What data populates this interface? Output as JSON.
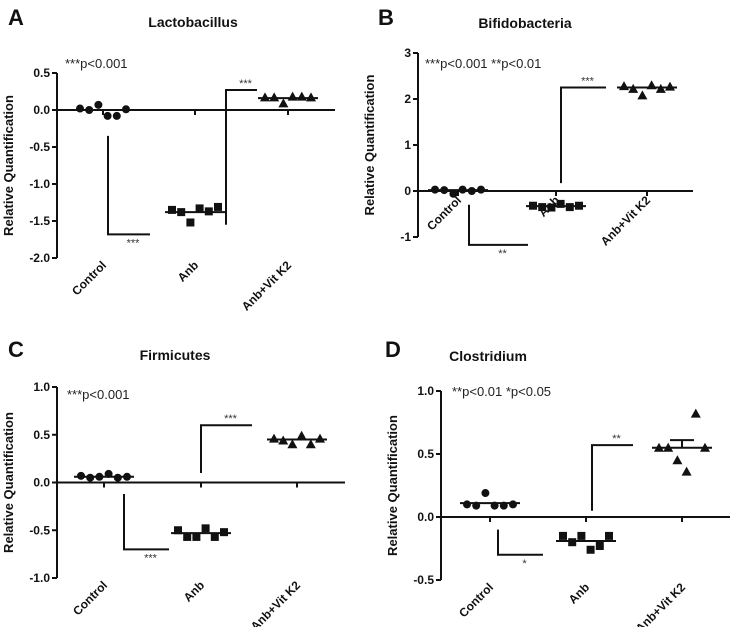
{
  "chart_data": [
    {
      "type": "scatter",
      "panel_label": "A",
      "title": "Lactobacillus",
      "ylabel": "Relative Quantification",
      "ylim": [
        -2.0,
        0.5
      ],
      "yticks": [
        "0.5",
        "0.0",
        "-0.5",
        "-1.0",
        "-1.5",
        "-2.0"
      ],
      "ytick_values": [
        0.5,
        0.0,
        -0.5,
        -1.0,
        -1.5,
        -2.0
      ],
      "categories": [
        "Control",
        "Anb",
        "Anb+Vit K2"
      ],
      "markers": [
        "circle",
        "square",
        "triangle"
      ],
      "series": [
        {
          "values": [
            0.02,
            0.0,
            0.07,
            -0.08,
            -0.08,
            0.01
          ],
          "mean": 0.0
        },
        {
          "values": [
            -1.35,
            -1.38,
            -1.52,
            -1.33,
            -1.37,
            -1.31
          ],
          "mean": -1.38
        },
        {
          "values": [
            0.17,
            0.17,
            0.09,
            0.18,
            0.18,
            0.17
          ],
          "mean": 0.16
        }
      ],
      "p_note": "***p<0.001",
      "brackets": [
        {
          "y_start": -0.35,
          "y_end": -1.68,
          "label": "***"
        },
        {
          "y_start": -1.55,
          "y_end": 0.27,
          "label": "***"
        }
      ]
    },
    {
      "type": "scatter",
      "panel_label": "B",
      "title": "Bifidobacteria",
      "ylabel": "Relative Quantification",
      "ylim": [
        -1,
        3
      ],
      "yticks": [
        "3",
        "2",
        "1",
        "0",
        "-1"
      ],
      "ytick_values": [
        3,
        2,
        1,
        0,
        -1
      ],
      "categories": [
        "Control",
        "Anb",
        "Anb+Vit K2"
      ],
      "markers": [
        "circle",
        "square",
        "triangle"
      ],
      "series": [
        {
          "values": [
            0.03,
            0.02,
            -0.06,
            0.03,
            0.0,
            0.03
          ],
          "mean": 0.02
        },
        {
          "values": [
            -0.32,
            -0.35,
            -0.36,
            -0.28,
            -0.35,
            -0.32
          ],
          "mean": -0.33
        },
        {
          "values": [
            2.28,
            2.22,
            2.08,
            2.3,
            2.22,
            2.27
          ],
          "mean": 2.25
        }
      ],
      "p_note": "***p<0.001 **p<0.01",
      "brackets": [
        {
          "y_start": -0.3,
          "y_end": -1.17,
          "label": "**"
        },
        {
          "y_start": 0.17,
          "y_end": 2.25,
          "label": "***"
        }
      ]
    },
    {
      "type": "scatter",
      "panel_label": "C",
      "title": "Firmicutes",
      "ylabel": "Relative Quantification",
      "ylim": [
        -1.0,
        1.0
      ],
      "yticks": [
        "1.0",
        "0.5",
        "0.0",
        "-0.5",
        "-1.0"
      ],
      "ytick_values": [
        1.0,
        0.5,
        0.0,
        -0.5,
        -1.0
      ],
      "categories": [
        "Control",
        "Anb",
        "Anb+Vit K2"
      ],
      "markers": [
        "circle",
        "square",
        "triangle"
      ],
      "series": [
        {
          "values": [
            0.07,
            0.05,
            0.06,
            0.09,
            0.05,
            0.06
          ],
          "mean": 0.06
        },
        {
          "values": [
            -0.5,
            -0.57,
            -0.57,
            -0.48,
            -0.57,
            -0.52
          ],
          "mean": -0.53
        },
        {
          "values": [
            0.46,
            0.44,
            0.4,
            0.49,
            0.4,
            0.46
          ],
          "mean": 0.45
        }
      ],
      "p_note": "***p<0.001",
      "brackets": [
        {
          "y_start": -0.12,
          "y_end": -0.7,
          "label": "***"
        },
        {
          "y_start": 0.1,
          "y_end": 0.6,
          "label": "***"
        }
      ]
    },
    {
      "type": "scatter",
      "panel_label": "D",
      "title": "Clostridium",
      "ylabel": "Relative Quantification",
      "ylim": [
        -0.5,
        1.0
      ],
      "yticks": [
        "1.0",
        "0.5",
        "0.0",
        "-0.5"
      ],
      "ytick_values": [
        1.0,
        0.5,
        0.0,
        -0.5
      ],
      "categories": [
        "Control",
        "Anb",
        "Anb+Vit K2"
      ],
      "markers": [
        "circle",
        "square",
        "triangle"
      ],
      "series": [
        {
          "values": [
            0.1,
            0.09,
            0.19,
            0.09,
            0.09,
            0.1
          ],
          "mean": 0.11
        },
        {
          "values": [
            -0.15,
            -0.2,
            -0.15,
            -0.26,
            -0.23,
            -0.15
          ],
          "mean": -0.19
        },
        {
          "values": [
            0.55,
            0.55,
            0.45,
            0.36,
            0.82,
            0.55
          ],
          "mean": 0.55,
          "error_upper": 0.61
        }
      ],
      "p_note": "**p<0.01 *p<0.05",
      "brackets": [
        {
          "y_start": -0.1,
          "y_end": -0.3,
          "label": "*"
        },
        {
          "y_start": 0.05,
          "y_end": 0.57,
          "label": "**"
        }
      ]
    }
  ]
}
